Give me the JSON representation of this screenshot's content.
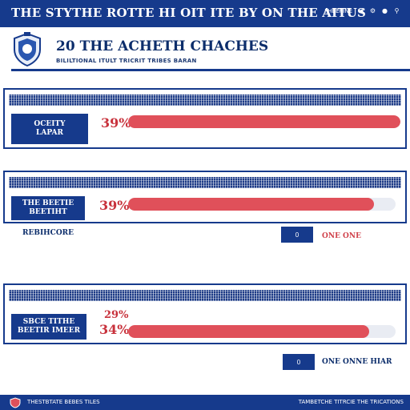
{
  "header": {
    "title": "THE STYTHE ROTTE HI OIT ITE BY ON THE AITUS",
    "links": [
      "FHEERINE"
    ],
    "icons": [
      "share-icon",
      "settings-icon",
      "user-icon",
      "search-icon"
    ]
  },
  "page": {
    "title": "20 THE ACHETH CHACHES",
    "subtitle": "BILILTIONAL ITULT TRICRIT TRIBES BARAN"
  },
  "panels": [
    {
      "label_line1": "OCEITY",
      "label_line2": "LAPAR",
      "percent": "39%",
      "fill_fraction": 1.0
    },
    {
      "label_line1": "THE BEETIE",
      "label_line2": "BEETIHT",
      "percent": "39%",
      "fill_fraction": 0.92
    },
    {
      "label_line1": "SBCE TITHE",
      "label_line2": "BEETIR IMEER",
      "percent_top": "29%",
      "percent_bottom": "34%",
      "fill_fraction": 0.9
    }
  ],
  "section": {
    "label": "REBIHCORE"
  },
  "actions": [
    {
      "button_label": "0",
      "text": "ONE ONE"
    },
    {
      "button_label": "0",
      "text": "ONE ONNE HIAR"
    }
  ],
  "footer": {
    "left_text": "THESTBTATE BEBES TILES",
    "right_text": "TAMBETCHE TITRCIE THE TRICATIONS"
  },
  "colors": {
    "navy": "#163a8c",
    "red": "#e0505a",
    "track": "#e9ecf3"
  }
}
